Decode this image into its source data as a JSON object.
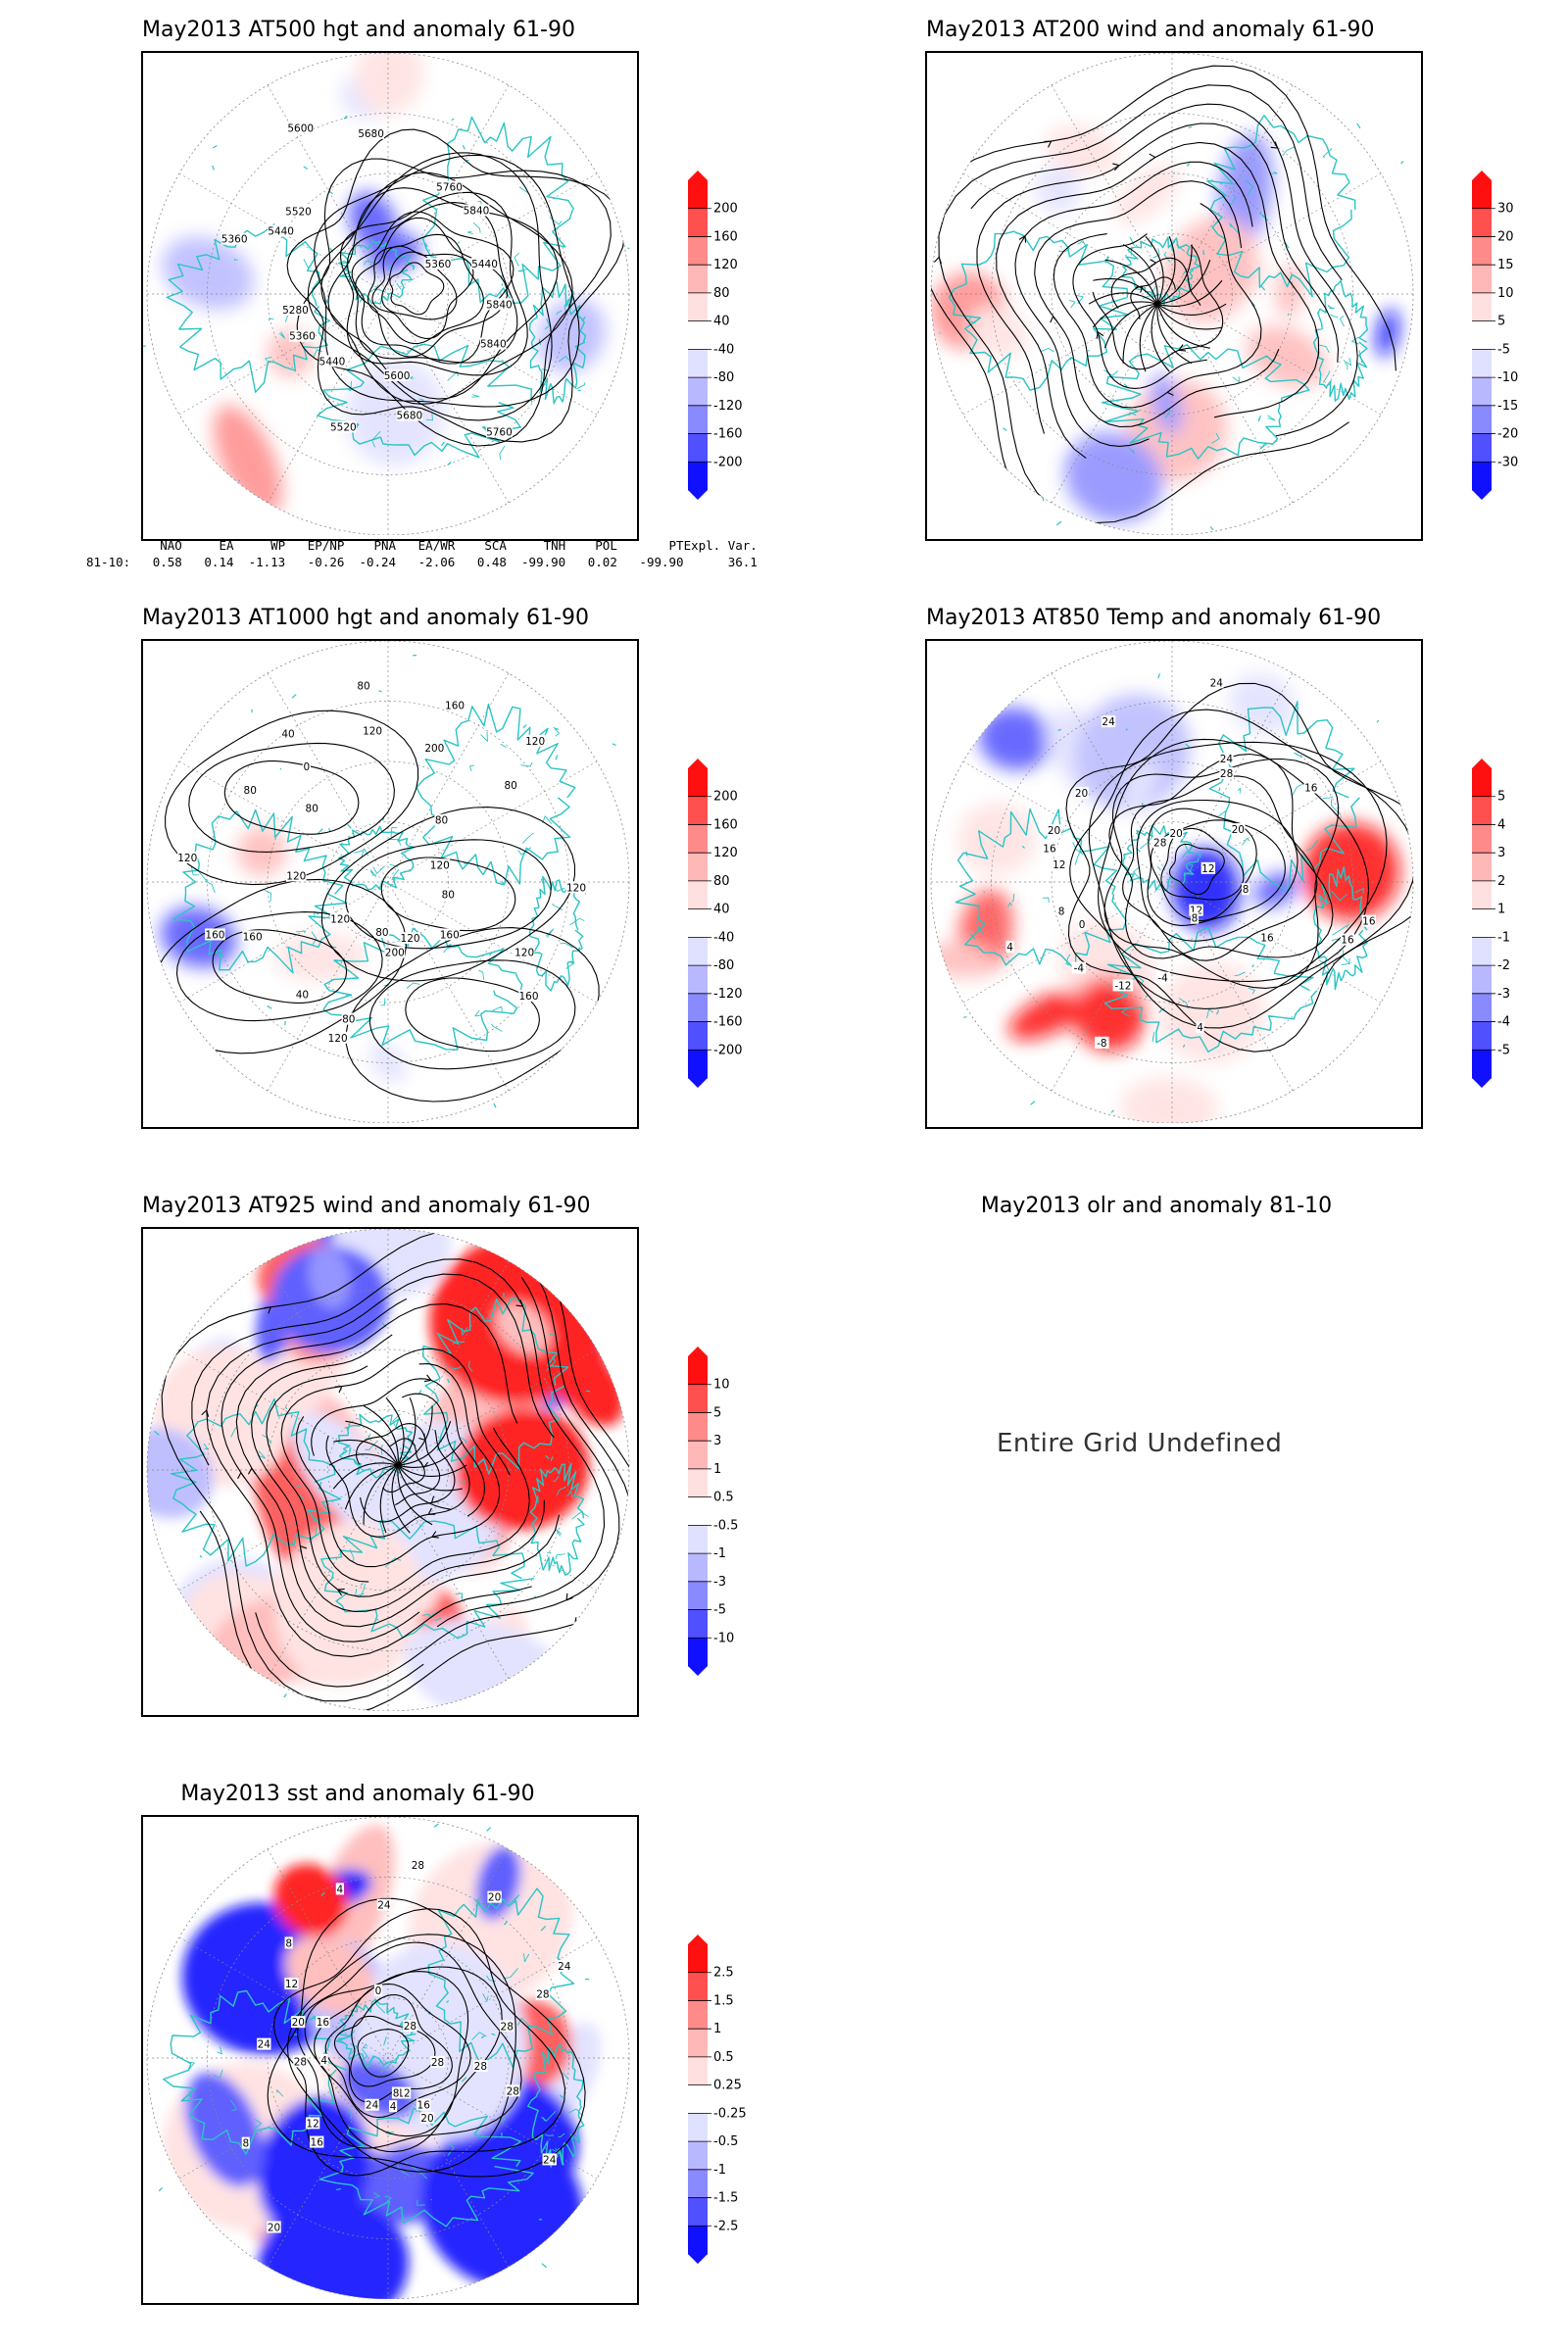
{
  "palette": {
    "coast": "#2bc4c4",
    "contour": "#000000",
    "grid": "#888888",
    "pos": [
      "#ffe0e0",
      "#ffb8b8",
      "#ff8a8a",
      "#ff5050",
      "#ff1010"
    ],
    "neg": [
      "#e0e0ff",
      "#b8b8ff",
      "#8a8aff",
      "#5050ff",
      "#1010ff"
    ]
  },
  "panels": {
    "p1": {
      "title": "May2013 AT500 hgt and anomaly 61-90",
      "labels": [
        "5840",
        "5840",
        "5760",
        "5680",
        "5600",
        "5520",
        "5440",
        "5360",
        "5280",
        "5360",
        "5440",
        "5520",
        "5600",
        "5680",
        "5760",
        "5840",
        "5360",
        "5440"
      ],
      "colorbar": [
        "200",
        "160",
        "120",
        "80",
        "40",
        "-40",
        "-80",
        "-120",
        "-160",
        "-200"
      ]
    },
    "p2": {
      "title": "May2013 AT200 wind and anomaly 61-90",
      "colorbar": [
        "30",
        "20",
        "15",
        "10",
        "5",
        "-5",
        "-10",
        "-15",
        "-20",
        "-30"
      ]
    },
    "p3": {
      "title": "May2013 AT1000 hgt and anomaly 61-90",
      "labels": [
        "80",
        "120",
        "160",
        "160",
        "120",
        "200",
        "80",
        "80",
        "120",
        "40",
        "120",
        "160",
        "160",
        "120",
        "120",
        "80",
        "80",
        "40",
        "0",
        "120",
        "80",
        "200",
        "160",
        "120",
        "80",
        "80",
        "120",
        "120"
      ],
      "colorbar": [
        "200",
        "160",
        "120",
        "80",
        "40",
        "-40",
        "-80",
        "-120",
        "-160",
        "-200"
      ]
    },
    "p4": {
      "title": "May2013 AT850 Temp and anomaly 61-90",
      "labels": [
        "16",
        "16",
        "16",
        "12",
        "8",
        "4",
        "-4",
        "-8",
        "-12",
        "-4",
        "0",
        "4",
        "8",
        "12",
        "16",
        "20",
        "20",
        "24",
        "28",
        "20",
        "24",
        "28",
        "24",
        "20",
        "16",
        "12",
        "8"
      ],
      "colorbar": [
        "5",
        "4",
        "3",
        "2",
        "1",
        "-1",
        "-2",
        "-3",
        "-4",
        "-5"
      ]
    },
    "p5": {
      "title": "May2013 AT925 wind and anomaly 61-90",
      "colorbar": [
        "10",
        "5",
        "3",
        "1",
        "0.5",
        "-0.5",
        "-1",
        "-3",
        "-5",
        "-10"
      ]
    },
    "p6": {
      "title": "May2013 olr and anomaly 81-10",
      "message": "Entire Grid Undefined"
    },
    "p7": {
      "title": "May2013 sst and anomaly 61-90",
      "labels": [
        "28",
        "28",
        "24",
        "20",
        "16",
        "12",
        "8",
        "4",
        "24",
        "20",
        "16",
        "12",
        "8",
        "4",
        "28",
        "24",
        "20",
        "16",
        "12",
        "8",
        "4",
        "0",
        "24",
        "28",
        "28",
        "20",
        "24",
        "28",
        "28",
        "28"
      ],
      "colorbar": [
        "2.5",
        "1.5",
        "1",
        "0.5",
        "0.25",
        "-0.25",
        "-0.5",
        "-1",
        "-1.5",
        "-2.5"
      ]
    }
  },
  "teleconnections": {
    "headers": [
      "NAO",
      "EA",
      "WP",
      "EP/NP",
      "PNA",
      "EA/WR",
      "SCA",
      "TNH",
      "POL",
      "PT",
      "Expl. Var."
    ],
    "row_label": "81-10:",
    "values": [
      "0.58",
      "0.14",
      "-1.13",
      "-0.26",
      "-0.24",
      "-2.06",
      "0.48",
      "-99.90",
      "0.02",
      "-99.90",
      "36.1"
    ]
  }
}
